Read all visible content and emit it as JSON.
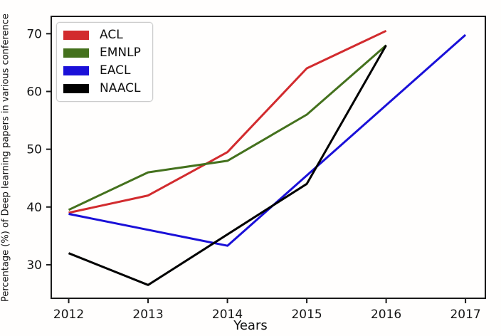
{
  "chart_data": {
    "type": "line",
    "title": "",
    "xlabel": "Years",
    "ylabel": "Percentage (%) of Deep learning papers in various conference",
    "x_ticks": [
      2012,
      2013,
      2014,
      2015,
      2016,
      2017
    ],
    "y_ticks": [
      30,
      40,
      50,
      60,
      70
    ],
    "xlim": [
      2011.78,
      2017.25
    ],
    "ylim": [
      24.2,
      73.0
    ],
    "grid": false,
    "legend_position": "upper-left",
    "axis_color": "#1a1a1a",
    "series": [
      {
        "name": "ACL",
        "color": "#d22b2e",
        "points": [
          [
            2012,
            39.0
          ],
          [
            2013,
            42.0
          ],
          [
            2014,
            49.5
          ],
          [
            2015,
            64.0
          ],
          [
            2016,
            70.5
          ]
        ]
      },
      {
        "name": "EMNLP",
        "color": "#44711d",
        "points": [
          [
            2012,
            39.5
          ],
          [
            2013,
            46.0
          ],
          [
            2014,
            48.0
          ],
          [
            2015,
            56.0
          ],
          [
            2016,
            68.0
          ]
        ]
      },
      {
        "name": "EACL",
        "color": "#1a10d8",
        "points": [
          [
            2012,
            38.8
          ],
          [
            2014,
            33.3
          ],
          [
            2017,
            69.8
          ]
        ]
      },
      {
        "name": "NAACL",
        "color": "#000000",
        "points": [
          [
            2012,
            32.0
          ],
          [
            2013,
            26.5
          ],
          [
            2015,
            44.0
          ],
          [
            2016,
            68.0
          ]
        ]
      }
    ]
  }
}
